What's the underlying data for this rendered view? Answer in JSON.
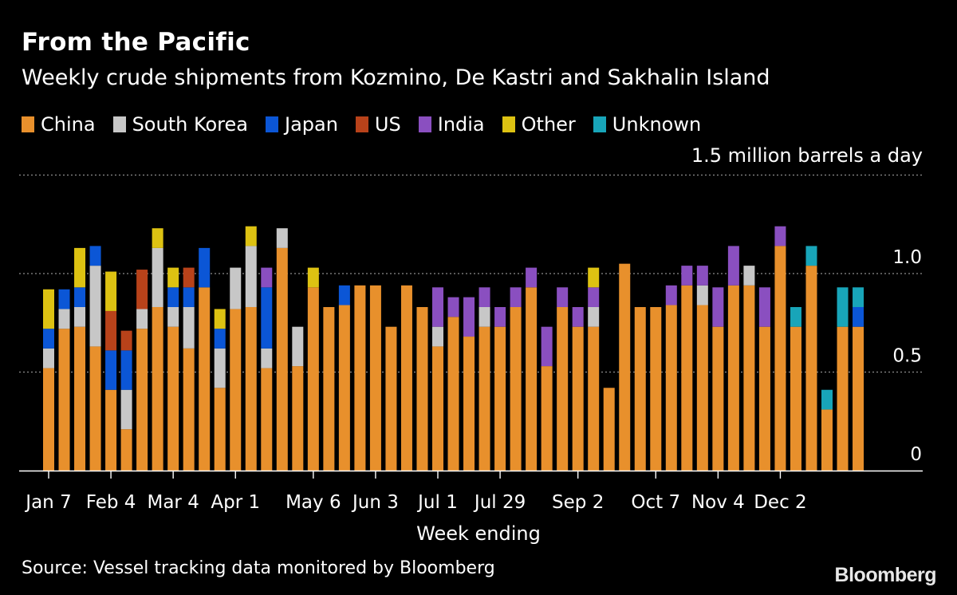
{
  "title": "From the Pacific",
  "subtitle": "Weekly crude shipments from Kozmino, De Kastri and Sakhalin Island",
  "source": "Source: Vessel tracking data monitored by Bloomberg",
  "brand": "Bloomberg",
  "colors": {
    "China": "#e8902c",
    "South Korea": "#c7c7c7",
    "Japan": "#0b56d6",
    "US": "#b8421a",
    "India": "#8a4fc0",
    "Other": "#ddc212",
    "Unknown": "#18a5b9",
    "grid": "#8c8c8c",
    "axis": "#ffffff"
  },
  "chart_data": {
    "type": "bar",
    "stacked": true,
    "title": "From the Pacific",
    "subtitle": "Weekly crude shipments from Kozmino, De Kastri and Sakhalin Island",
    "unit_label": "1.5 million barrels a day",
    "xlabel": "Week ending",
    "ylabel": "",
    "ylim": [
      0,
      1.5
    ],
    "y_ticks": [
      {
        "value": 0,
        "label": "0"
      },
      {
        "value": 0.5,
        "label": "0.5"
      },
      {
        "value": 1.0,
        "label": "1.0"
      }
    ],
    "x_ticks": [
      {
        "week_index": 0,
        "label": "Jan 7"
      },
      {
        "week_index": 4,
        "label": "Feb 4"
      },
      {
        "week_index": 8,
        "label": "Mar 4"
      },
      {
        "week_index": 12,
        "label": "Apr 1"
      },
      {
        "week_index": 17,
        "label": "May 6"
      },
      {
        "week_index": 21,
        "label": "Jun 3"
      },
      {
        "week_index": 25,
        "label": "Jul 1"
      },
      {
        "week_index": 29,
        "label": "Jul 29"
      },
      {
        "week_index": 34,
        "label": "Sep 2"
      },
      {
        "week_index": 39,
        "label": "Oct 7"
      },
      {
        "week_index": 43,
        "label": "Nov 4"
      },
      {
        "week_index": 47,
        "label": "Dec 2"
      }
    ],
    "series_names": [
      "China",
      "South Korea",
      "Japan",
      "US",
      "India",
      "Other",
      "Unknown"
    ],
    "weeks": [
      {
        "China": 0.52,
        "South Korea": 0.1,
        "Japan": 0.1,
        "Other": 0.2
      },
      {
        "China": 0.72,
        "South Korea": 0.1,
        "Japan": 0.1
      },
      {
        "China": 0.73,
        "South Korea": 0.1,
        "Japan": 0.1,
        "Other": 0.2
      },
      {
        "China": 0.63,
        "South Korea": 0.41,
        "Japan": 0.1
      },
      {
        "China": 0.41,
        "Japan": 0.2,
        "US": 0.2,
        "Other": 0.2
      },
      {
        "China": 0.21,
        "South Korea": 0.2,
        "Japan": 0.2,
        "US": 0.1
      },
      {
        "China": 0.72,
        "South Korea": 0.1,
        "US": 0.2
      },
      {
        "China": 0.83,
        "South Korea": 0.3,
        "Other": 0.1
      },
      {
        "China": 0.73,
        "South Korea": 0.1,
        "Japan": 0.1,
        "Other": 0.1
      },
      {
        "China": 0.62,
        "South Korea": 0.21,
        "Japan": 0.1,
        "US": 0.1
      },
      {
        "China": 0.93,
        "Japan": 0.2
      },
      {
        "China": 0.42,
        "South Korea": 0.2,
        "Japan": 0.1,
        "Other": 0.1
      },
      {
        "China": 0.82,
        "South Korea": 0.21
      },
      {
        "China": 0.83,
        "South Korea": 0.31,
        "Other": 0.1
      },
      {
        "China": 0.52,
        "South Korea": 0.1,
        "Japan": 0.31,
        "India": 0.1
      },
      {
        "China": 1.13,
        "South Korea": 0.1
      },
      {
        "China": 0.53,
        "South Korea": 0.2
      },
      {
        "China": 0.93,
        "Other": 0.1
      },
      {
        "China": 0.83
      },
      {
        "China": 0.84,
        "Japan": 0.1
      },
      {
        "China": 0.94
      },
      {
        "China": 0.94
      },
      {
        "China": 0.73
      },
      {
        "China": 0.94
      },
      {
        "China": 0.83
      },
      {
        "China": 0.63,
        "South Korea": 0.1,
        "India": 0.2
      },
      {
        "China": 0.78,
        "India": 0.1
      },
      {
        "China": 0.68,
        "India": 0.2
      },
      {
        "China": 0.73,
        "South Korea": 0.1,
        "India": 0.1
      },
      {
        "China": 0.73,
        "India": 0.1
      },
      {
        "China": 0.83,
        "India": 0.1
      },
      {
        "China": 0.93,
        "India": 0.1
      },
      {
        "China": 0.53,
        "India": 0.2
      },
      {
        "China": 0.83,
        "India": 0.1
      },
      {
        "China": 0.73,
        "India": 0.1
      },
      {
        "China": 0.73,
        "South Korea": 0.1,
        "India": 0.1,
        "Other": 0.1
      },
      {
        "China": 0.42
      },
      {
        "China": 1.05
      },
      {
        "China": 0.83
      },
      {
        "China": 0.83
      },
      {
        "China": 0.84,
        "India": 0.1
      },
      {
        "China": 0.94,
        "India": 0.1
      },
      {
        "China": 0.84,
        "South Korea": 0.1,
        "India": 0.1
      },
      {
        "China": 0.73,
        "India": 0.2
      },
      {
        "China": 0.94,
        "India": 0.2
      },
      {
        "China": 0.94,
        "South Korea": 0.1
      },
      {
        "China": 0.73,
        "India": 0.2
      },
      {
        "China": 1.14,
        "India": 0.1
      },
      {
        "China": 0.73,
        "Unknown": 0.1
      },
      {
        "China": 1.04,
        "Unknown": 0.1
      },
      {
        "China": 0.31,
        "Unknown": 0.1
      },
      {
        "China": 0.73,
        "Unknown": 0.2
      },
      {
        "China": 0.73,
        "Japan": 0.1,
        "Unknown": 0.1
      }
    ]
  }
}
